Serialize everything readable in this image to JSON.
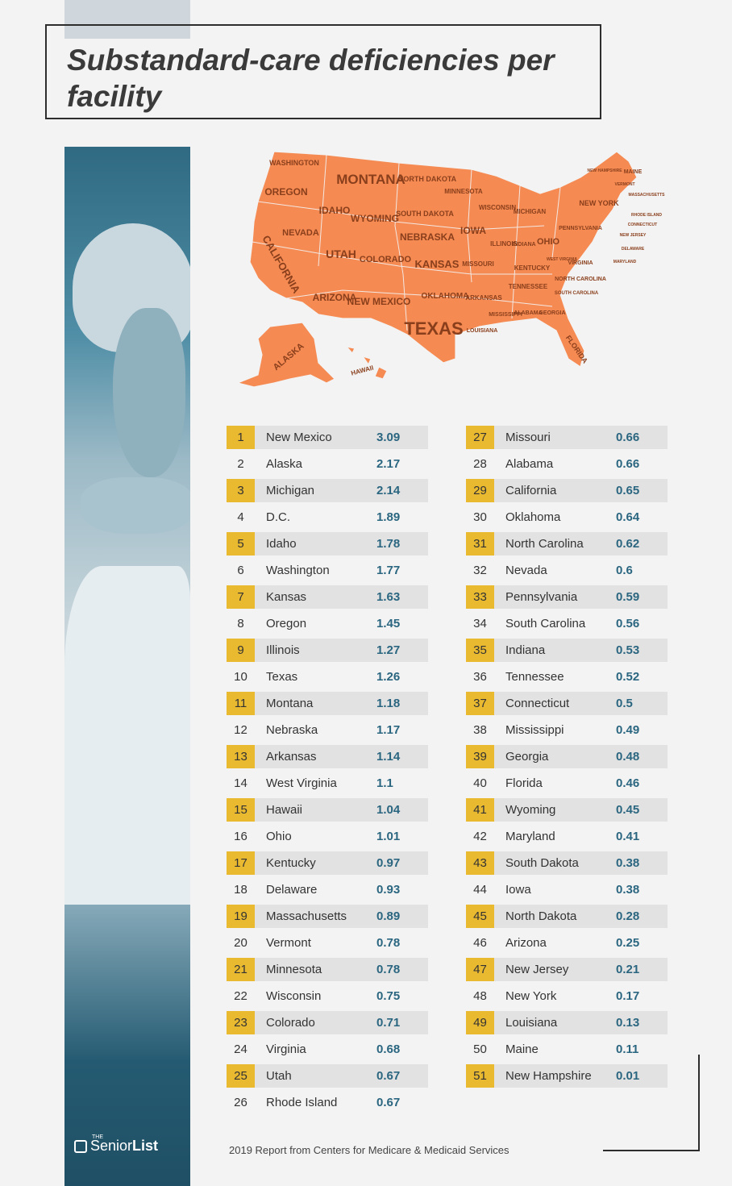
{
  "title": "Substandard-care deficiencies per facility",
  "source": "2019 Report from Centers for Medicare & Medicaid Services",
  "logo": {
    "the": "THE",
    "senior": "Senior",
    "list": "List"
  },
  "colors": {
    "map": "#f58a52",
    "rank_highlight": "#e9b930",
    "value": "#2b6680",
    "row_shade": "#e2e2e2"
  },
  "map_labels": [
    "WASHINGTON",
    "OREGON",
    "CALIFORNIA",
    "NEVADA",
    "IDAHO",
    "MONTANA",
    "WYOMING",
    "UTAH",
    "ARIZONA",
    "COLORADO",
    "NEW MEXICO",
    "NORTH DAKOTA",
    "SOUTH DAKOTA",
    "NEBRASKA",
    "KANSAS",
    "OKLAHOMA",
    "TEXAS",
    "MINNESOTA",
    "IOWA",
    "MISSOURI",
    "ARKANSAS",
    "LOUISIANA",
    "WISCONSIN",
    "ILLINOIS",
    "MICHIGAN",
    "INDIANA",
    "OHIO",
    "KENTUCKY",
    "TENNESSEE",
    "MISSISSIPPI",
    "ALABAMA",
    "GEORGIA",
    "FLORIDA",
    "SOUTH CAROLINA",
    "NORTH CAROLINA",
    "VIRGINIA",
    "WEST VIRGINIA",
    "PENNSYLVANIA",
    "NEW YORK",
    "MAINE",
    "NEW HAMPSHIRE",
    "MASSACHUSETTS",
    "RHODE ISLAND",
    "CONNECTICUT",
    "NEW JERSEY",
    "DELAWARE",
    "MARYLAND",
    "VERMONT",
    "ALASKA",
    "HAWAII"
  ],
  "chart_data": {
    "type": "table",
    "title": "Substandard-care deficiencies per facility",
    "rows": [
      {
        "rank": "1",
        "state": "New Mexico",
        "value": "3.09"
      },
      {
        "rank": "2",
        "state": "Alaska",
        "value": "2.17"
      },
      {
        "rank": "3",
        "state": "Michigan",
        "value": "2.14"
      },
      {
        "rank": "4",
        "state": "D.C.",
        "value": "1.89"
      },
      {
        "rank": "5",
        "state": "Idaho",
        "value": "1.78"
      },
      {
        "rank": "6",
        "state": "Washington",
        "value": "1.77"
      },
      {
        "rank": "7",
        "state": "Kansas",
        "value": "1.63"
      },
      {
        "rank": "8",
        "state": "Oregon",
        "value": "1.45"
      },
      {
        "rank": "9",
        "state": "Illinois",
        "value": "1.27"
      },
      {
        "rank": "10",
        "state": "Texas",
        "value": "1.26"
      },
      {
        "rank": "11",
        "state": "Montana",
        "value": "1.18"
      },
      {
        "rank": "12",
        "state": "Nebraska",
        "value": "1.17"
      },
      {
        "rank": "13",
        "state": "Arkansas",
        "value": "1.14"
      },
      {
        "rank": "14",
        "state": "West Virginia",
        "value": "1.1"
      },
      {
        "rank": "15",
        "state": "Hawaii",
        "value": "1.04"
      },
      {
        "rank": "16",
        "state": "Ohio",
        "value": "1.01"
      },
      {
        "rank": "17",
        "state": "Kentucky",
        "value": "0.97"
      },
      {
        "rank": "18",
        "state": "Delaware",
        "value": "0.93"
      },
      {
        "rank": "19",
        "state": "Massachusetts",
        "value": "0.89"
      },
      {
        "rank": "20",
        "state": "Vermont",
        "value": "0.78"
      },
      {
        "rank": "21",
        "state": "Minnesota",
        "value": "0.78"
      },
      {
        "rank": "22",
        "state": "Wisconsin",
        "value": "0.75"
      },
      {
        "rank": "23",
        "state": "Colorado",
        "value": "0.71"
      },
      {
        "rank": "24",
        "state": "Virginia",
        "value": "0.68"
      },
      {
        "rank": "25",
        "state": "Utah",
        "value": "0.67"
      },
      {
        "rank": "26",
        "state": "Rhode Island",
        "value": "0.67"
      },
      {
        "rank": "27",
        "state": "Missouri",
        "value": "0.66"
      },
      {
        "rank": "28",
        "state": "Alabama",
        "value": "0.66"
      },
      {
        "rank": "29",
        "state": "California",
        "value": "0.65"
      },
      {
        "rank": "30",
        "state": "Oklahoma",
        "value": "0.64"
      },
      {
        "rank": "31",
        "state": "North Carolina",
        "value": "0.62"
      },
      {
        "rank": "32",
        "state": "Nevada",
        "value": "0.6"
      },
      {
        "rank": "33",
        "state": "Pennsylvania",
        "value": "0.59"
      },
      {
        "rank": "34",
        "state": "South Carolina",
        "value": "0.56"
      },
      {
        "rank": "35",
        "state": "Indiana",
        "value": "0.53"
      },
      {
        "rank": "36",
        "state": "Tennessee",
        "value": "0.52"
      },
      {
        "rank": "37",
        "state": "Connecticut",
        "value": "0.5"
      },
      {
        "rank": "38",
        "state": "Mississippi",
        "value": "0.49"
      },
      {
        "rank": "39",
        "state": "Georgia",
        "value": "0.48"
      },
      {
        "rank": "40",
        "state": "Florida",
        "value": "0.46"
      },
      {
        "rank": "41",
        "state": "Wyoming",
        "value": "0.45"
      },
      {
        "rank": "42",
        "state": "Maryland",
        "value": "0.41"
      },
      {
        "rank": "43",
        "state": "South Dakota",
        "value": "0.38"
      },
      {
        "rank": "44",
        "state": "Iowa",
        "value": "0.38"
      },
      {
        "rank": "45",
        "state": "North Dakota",
        "value": "0.28"
      },
      {
        "rank": "46",
        "state": "Arizona",
        "value": "0.25"
      },
      {
        "rank": "47",
        "state": "New Jersey",
        "value": "0.21"
      },
      {
        "rank": "48",
        "state": "New York",
        "value": "0.17"
      },
      {
        "rank": "49",
        "state": "Louisiana",
        "value": "0.13"
      },
      {
        "rank": "50",
        "state": "Maine",
        "value": "0.11"
      },
      {
        "rank": "51",
        "state": "New Hampshire",
        "value": "0.01"
      }
    ]
  }
}
